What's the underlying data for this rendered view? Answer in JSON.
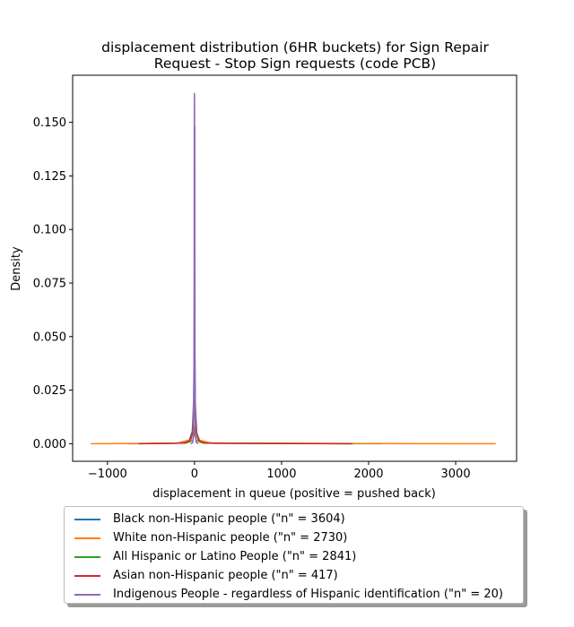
{
  "chart_data": {
    "type": "line",
    "title_line1": "displacement distribution (6HR buckets) for Sign Repair",
    "title_line2": "Request - Stop Sign requests (code PCB)",
    "xlabel": "displacement in queue (positive = pushed back)",
    "ylabel": "Density",
    "xlim": [
      -1400,
      3700
    ],
    "ylim": [
      -0.0082,
      0.172
    ],
    "x_ticks": [
      -1000,
      0,
      1000,
      2000,
      3000
    ],
    "x_tick_labels": [
      "−1000",
      "0",
      "1000",
      "2000",
      "3000"
    ],
    "y_ticks": [
      0.0,
      0.025,
      0.05,
      0.075,
      0.1,
      0.125,
      0.15
    ],
    "y_tick_labels": [
      "0.000",
      "0.025",
      "0.050",
      "0.075",
      "0.100",
      "0.125",
      "0.150"
    ],
    "grid": false,
    "legend_position": "below plot",
    "series": [
      {
        "name": "Black non-Hispanic people (\"n\" = 3604)",
        "color": "#1f77b4",
        "x": [
          -760,
          -200,
          -60,
          -25,
          -10,
          -4,
          -2,
          0,
          2,
          4,
          10,
          25,
          60,
          200,
          2150
        ],
        "y": [
          0,
          0.0002,
          0.0015,
          0.006,
          0.02,
          0.045,
          0.06,
          0.068,
          0.058,
          0.04,
          0.018,
          0.005,
          0.0012,
          0.0002,
          0
        ]
      },
      {
        "name": "White non-Hispanic people (\"n\" = 2730)",
        "color": "#ff7f0e",
        "x": [
          -1190,
          -200,
          -40,
          -15,
          -5,
          -2,
          0,
          2,
          5,
          15,
          40,
          200,
          3460
        ],
        "y": [
          0,
          0.0002,
          0.002,
          0.008,
          0.025,
          0.036,
          0.04,
          0.035,
          0.022,
          0.007,
          0.0018,
          0.0002,
          0
        ]
      },
      {
        "name": "All Hispanic or Latino People (\"n\" = 2841)",
        "color": "#2ca02c",
        "x": [
          -640,
          -100,
          -20,
          -8,
          -3,
          0,
          3,
          8,
          20,
          100,
          1820
        ],
        "y": [
          0,
          0.0003,
          0.0015,
          0.004,
          0.007,
          0.008,
          0.007,
          0.004,
          0.0015,
          0.0003,
          0
        ]
      },
      {
        "name": "Asian non-Hispanic people (\"n\" = 417)",
        "color": "#d62728",
        "x": [
          -640,
          -120,
          -60,
          -40,
          -25,
          -15,
          -8,
          -3,
          0,
          3,
          8,
          15,
          25,
          40,
          60,
          120,
          1800
        ],
        "y": [
          0,
          0.0003,
          0.0012,
          0.0025,
          0.005,
          0.009,
          0.013,
          0.0155,
          0.016,
          0.0155,
          0.013,
          0.009,
          0.005,
          0.0025,
          0.0012,
          0.0003,
          0
        ]
      },
      {
        "name": "Indigenous People - regardless of Hispanic identification (\"n\" = 20)",
        "color": "#9467bd",
        "x": [
          -45,
          -20,
          -10,
          -6,
          -4,
          -3,
          -2,
          -1,
          0,
          1,
          2,
          3,
          4,
          5,
          6,
          8,
          12,
          20,
          45
        ],
        "y": [
          0,
          0.0005,
          0.008,
          0.03,
          0.08,
          0.135,
          0.158,
          0.1635,
          0.16,
          0.12,
          0.03,
          0.148,
          0.095,
          0.06,
          0.03,
          0.01,
          0.003,
          0.0005,
          0
        ]
      }
    ]
  }
}
